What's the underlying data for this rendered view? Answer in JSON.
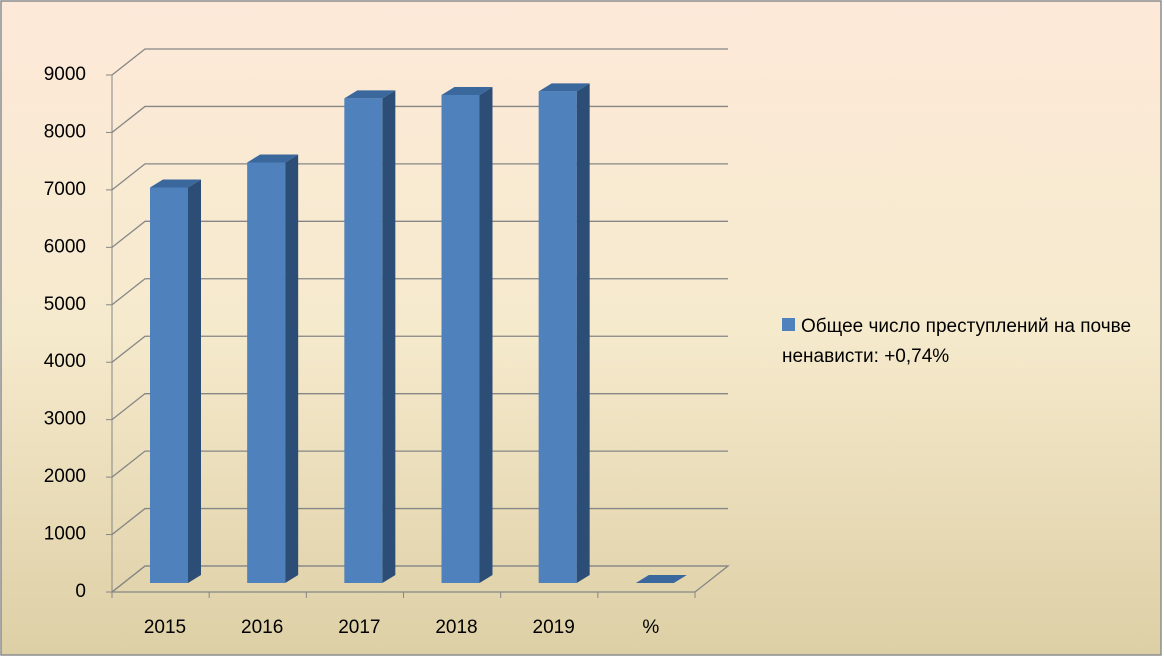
{
  "chart_data": {
    "type": "bar",
    "categories": [
      "2015",
      "2016",
      "2017",
      "2018",
      "2019",
      "%"
    ],
    "series": [
      {
        "name": "Общее число преступлений на почве ненависти: +0,74%",
        "color": "#4f81bd",
        "values": [
          6885,
          7321,
          8437,
          8496,
          8559,
          0.74
        ]
      }
    ],
    "ylim": [
      0,
      9000
    ],
    "yticks": [
      0,
      1000,
      2000,
      3000,
      4000,
      5000,
      6000,
      7000,
      8000,
      9000
    ],
    "grid": true,
    "legend": "right"
  }
}
